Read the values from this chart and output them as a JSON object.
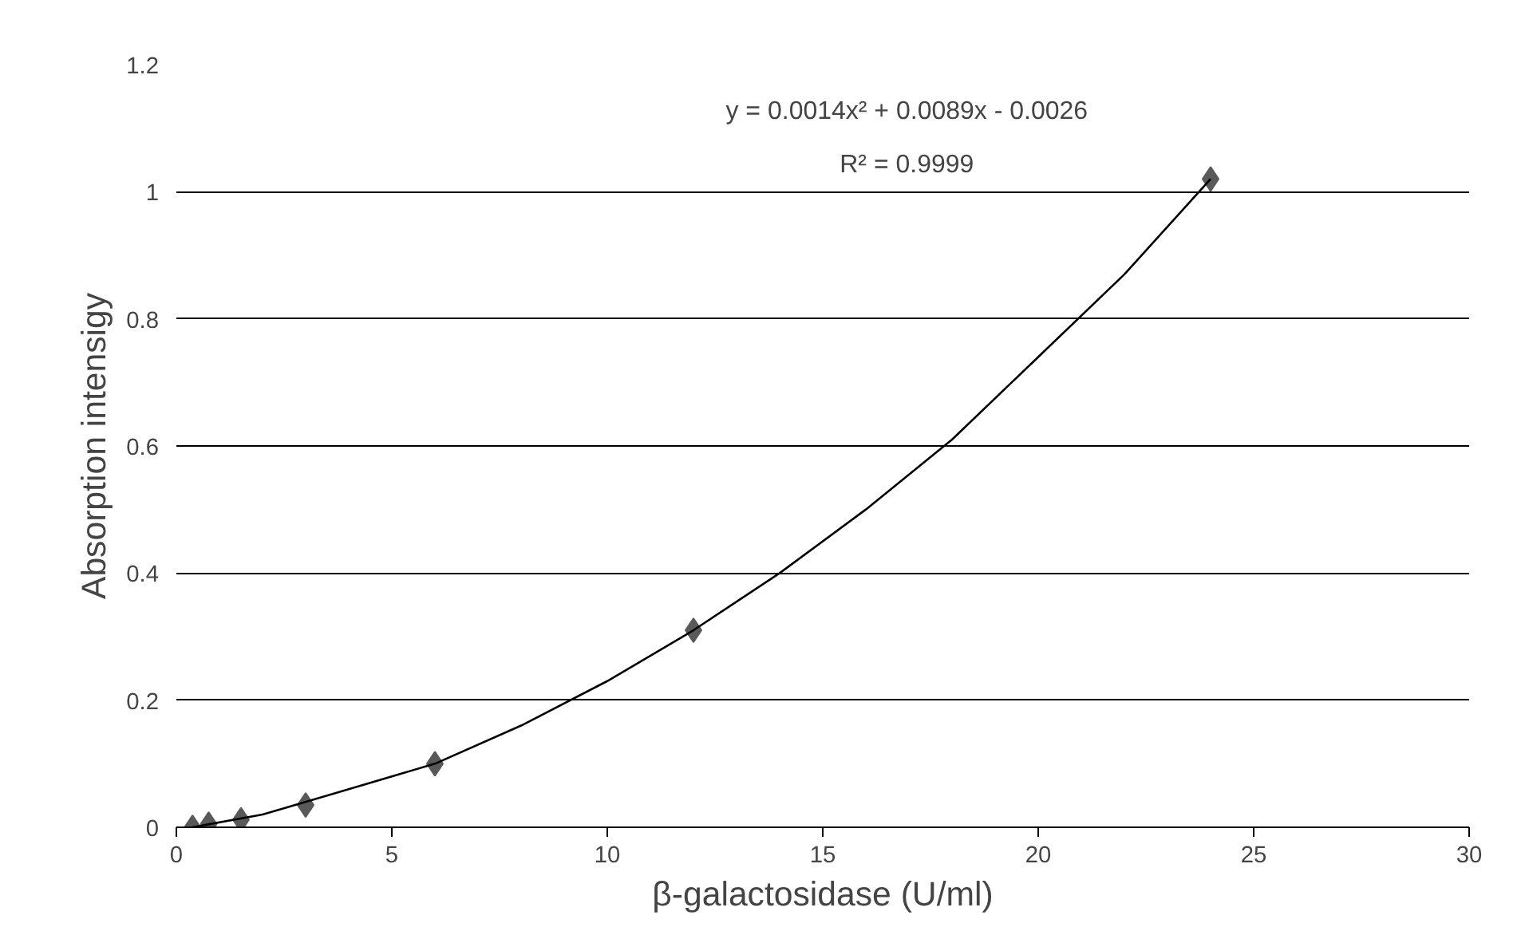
{
  "chart_data": {
    "type": "scatter",
    "xlabel": "β-galactosidase (U/ml)",
    "ylabel": "Absorption intensigy",
    "x": [
      0.375,
      0.75,
      1.5,
      3,
      6,
      12,
      24
    ],
    "series": [
      {
        "color": "#595959",
        "values": [
          0,
          0.005,
          0.012,
          0.035,
          0.1,
          0.31,
          1.02
        ],
        "marker": "diamond"
      },
      {
        "type": "line",
        "color": "#000000",
        "marker": "none",
        "x": [
          0.375,
          2,
          4,
          6,
          8,
          10,
          12,
          14,
          16,
          18,
          20,
          22,
          24
        ],
        "values": [
          0,
          0.02,
          0.06,
          0.1,
          0.16,
          0.23,
          0.31,
          0.4,
          0.5,
          0.61,
          0.74,
          0.87,
          1.02
        ]
      }
    ],
    "annotations": [
      "y = 0.0014x² + 0.0089x - 0.0026",
      "R² = 0.9999"
    ],
    "xlim": [
      0,
      30
    ],
    "xticks": [
      0,
      5,
      10,
      15,
      20,
      25,
      30
    ],
    "ylim": [
      0,
      1.2
    ],
    "yticks": [
      0,
      0.2,
      0.4,
      0.6,
      0.8,
      1,
      1.2
    ],
    "grid": "y"
  }
}
